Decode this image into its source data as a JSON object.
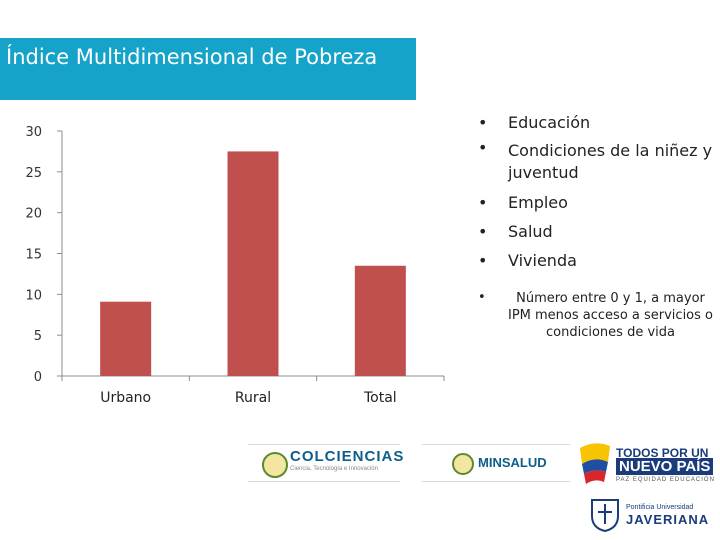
{
  "slide": {
    "title": "Índice Multidimensional de Pobreza"
  },
  "chart_data": {
    "type": "bar",
    "title": "",
    "categories": [
      "Urbano",
      "Rural",
      "Total"
    ],
    "values": [
      9.1,
      27.5,
      13.5
    ],
    "ylim": [
      0,
      30
    ],
    "yticks": [
      0,
      5,
      10,
      15,
      20,
      25,
      30
    ],
    "xlabel": "",
    "ylabel": "",
    "grid": false,
    "bar_color": "#c0504d"
  },
  "dimensions": {
    "items": [
      "Educación",
      "Condiciones de la niñez y juventud",
      "Empleo",
      "Salud",
      "Vivienda"
    ]
  },
  "note": "Número entre 0 y 1, a mayor IPM menos acceso a servicios o condiciones de vida",
  "logos": {
    "colciencias": "COLCIENCIAS",
    "colciencias_tag": "Ciencia, Tecnología e Innovación",
    "minsalud": "MINSALUD",
    "todos_line1": "TODOS POR UN",
    "todos_line2": "NUEVO PAÍS",
    "todos_line3": "PAZ EQUIDAD EDUCACIÓN",
    "javeriana_line1": "Pontificia Universidad",
    "javeriana_line2": "JAVERIANA"
  },
  "colors": {
    "title_bg": "#16a3c9",
    "bar": "#c0504d"
  }
}
